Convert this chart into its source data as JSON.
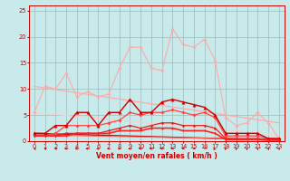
{
  "xlabel": "Vent moyen/en rafales ( km/h )",
  "xlim": [
    -0.5,
    23.5
  ],
  "ylim": [
    0,
    26
  ],
  "yticks": [
    0,
    5,
    10,
    15,
    20,
    25
  ],
  "xticks": [
    0,
    1,
    2,
    3,
    4,
    5,
    6,
    7,
    8,
    9,
    10,
    11,
    12,
    13,
    14,
    15,
    16,
    17,
    18,
    19,
    20,
    21,
    22,
    23
  ],
  "bg_color": "#c8eaea",
  "grid_color": "#99bbbb",
  "lines": [
    {
      "x": [
        0,
        1,
        2,
        3,
        4,
        5,
        6,
        7,
        8,
        9,
        10,
        11,
        12,
        13,
        14,
        15,
        16,
        17,
        18,
        19,
        20,
        21,
        22,
        23
      ],
      "y": [
        5.5,
        10.5,
        10.0,
        13.0,
        8.5,
        9.5,
        8.5,
        9.0,
        14.0,
        18.0,
        18.0,
        14.0,
        13.5,
        21.5,
        18.5,
        18.0,
        19.5,
        15.5,
        4.5,
        3.0,
        3.5,
        5.5,
        3.5,
        0.5
      ],
      "color": "#ffaaaa",
      "lw": 0.8,
      "marker": "D",
      "ms": 1.8,
      "zorder": 2
    },
    {
      "x": [
        0,
        1,
        2,
        3,
        4,
        5,
        6,
        7,
        8,
        9,
        10,
        11,
        12,
        13,
        14,
        15,
        16,
        17,
        18,
        19,
        20,
        21,
        22,
        23
      ],
      "y": [
        1.5,
        1.5,
        3.0,
        3.0,
        5.5,
        5.5,
        3.0,
        5.5,
        5.5,
        8.0,
        5.5,
        5.5,
        7.5,
        8.0,
        7.5,
        7.0,
        6.5,
        5.0,
        1.5,
        1.5,
        1.5,
        1.5,
        0.5,
        0.5
      ],
      "color": "#cc0000",
      "lw": 1.0,
      "marker": "^",
      "ms": 2.5,
      "zorder": 4
    },
    {
      "x": [
        0,
        1,
        2,
        3,
        4,
        5,
        6,
        7,
        8,
        9,
        10,
        11,
        12,
        13,
        14,
        15,
        16,
        17,
        18,
        19,
        20,
        21,
        22,
        23
      ],
      "y": [
        1.2,
        1.2,
        1.5,
        3.0,
        3.0,
        3.0,
        3.0,
        3.5,
        4.0,
        5.5,
        5.0,
        5.5,
        5.5,
        6.0,
        5.5,
        5.0,
        5.5,
        4.5,
        1.0,
        1.0,
        1.0,
        1.0,
        0.5,
        0.5
      ],
      "color": "#ff4444",
      "lw": 0.9,
      "marker": "D",
      "ms": 1.8,
      "zorder": 3
    },
    {
      "x": [
        0,
        1,
        2,
        3,
        4,
        5,
        6,
        7,
        8,
        9,
        10,
        11,
        12,
        13,
        14,
        15,
        16,
        17,
        18,
        19,
        20,
        21,
        22,
        23
      ],
      "y": [
        1.0,
        1.0,
        1.0,
        1.5,
        1.5,
        1.5,
        1.5,
        2.0,
        2.5,
        3.0,
        2.5,
        3.0,
        3.5,
        3.5,
        3.0,
        3.0,
        3.0,
        2.5,
        0.5,
        0.5,
        0.5,
        0.5,
        0.3,
        0.3
      ],
      "color": "#dd2222",
      "lw": 0.9,
      "marker": "D",
      "ms": 1.5,
      "zorder": 3
    },
    {
      "x": [
        0,
        1,
        2,
        3,
        4,
        5,
        6,
        7,
        8,
        9,
        10,
        11,
        12,
        13,
        14,
        15,
        16,
        17,
        18,
        19,
        20,
        21,
        22,
        23
      ],
      "y": [
        1.0,
        1.0,
        1.0,
        1.0,
        1.5,
        1.5,
        1.5,
        1.5,
        2.0,
        2.0,
        2.0,
        2.5,
        2.5,
        2.5,
        2.0,
        2.0,
        2.0,
        1.5,
        0.3,
        0.3,
        0.3,
        0.3,
        0.2,
        0.2
      ],
      "color": "#ff2222",
      "lw": 1.2,
      "marker": "D",
      "ms": 1.2,
      "zorder": 5
    },
    {
      "x": [
        0,
        23
      ],
      "y": [
        10.5,
        3.5
      ],
      "color": "#ffaaaa",
      "lw": 0.9,
      "marker": null,
      "ms": 0,
      "zorder": 1
    },
    {
      "x": [
        0,
        23
      ],
      "y": [
        5.5,
        1.2
      ],
      "color": "#ffcccc",
      "lw": 0.8,
      "marker": null,
      "ms": 0,
      "zorder": 1
    },
    {
      "x": [
        0,
        23
      ],
      "y": [
        1.5,
        0.2
      ],
      "color": "#cc0000",
      "lw": 1.0,
      "marker": null,
      "ms": 0,
      "zorder": 1
    },
    {
      "x": [
        0,
        23
      ],
      "y": [
        1.2,
        0.3
      ],
      "color": "#ff6666",
      "lw": 0.8,
      "marker": null,
      "ms": 0,
      "zorder": 1
    }
  ],
  "arrow_angles": [
    315,
    310,
    300,
    280,
    270,
    265,
    255,
    255,
    255,
    265,
    265,
    265,
    265,
    250,
    240,
    230,
    215,
    205,
    195,
    185,
    180,
    175,
    170,
    165
  ],
  "arrow_color": "#cc0000",
  "label_fontsize": 5.5,
  "tick_fontsize": 4.8
}
